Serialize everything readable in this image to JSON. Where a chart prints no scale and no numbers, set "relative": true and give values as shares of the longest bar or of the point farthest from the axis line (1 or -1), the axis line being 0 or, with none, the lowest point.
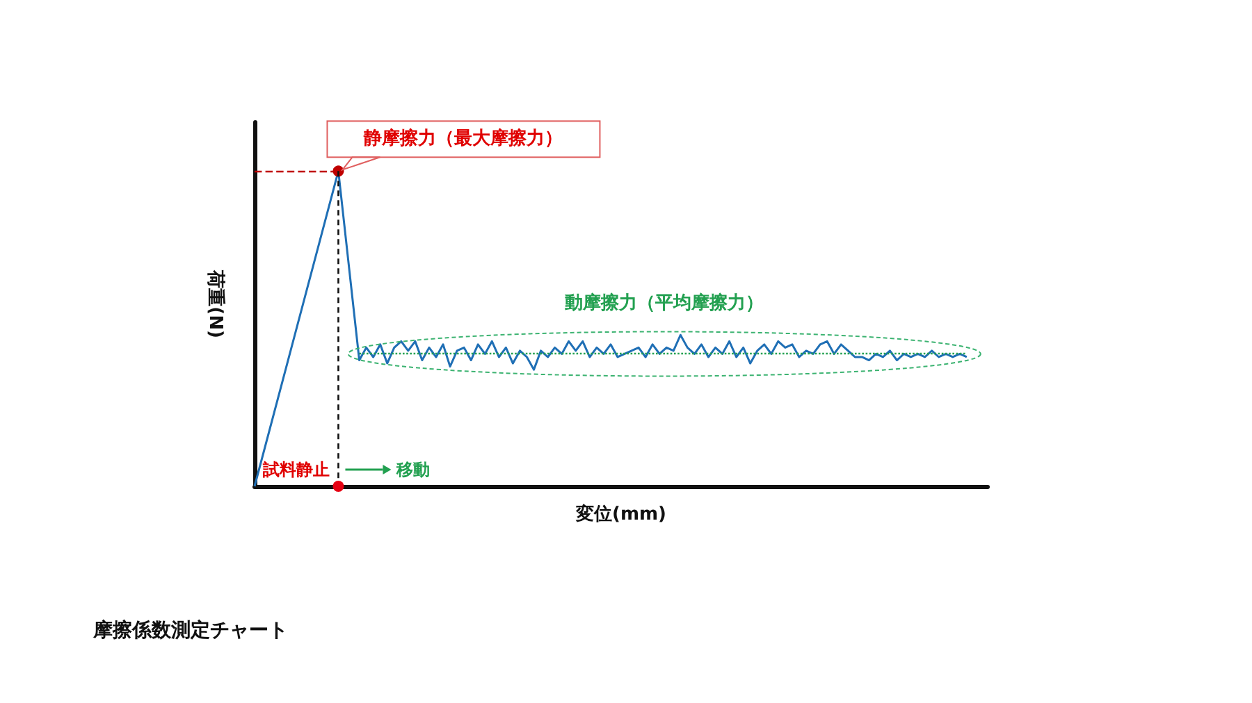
{
  "chart_data": {
    "type": "line",
    "relative": true,
    "title": "摩擦係数測定チャート",
    "xlabel": "変位(mm)",
    "ylabel": "荷重(N)",
    "categories": [
      null,
      null,
      null,
      null,
      null,
      null,
      null,
      null,
      null,
      null,
      null,
      null,
      null,
      null,
      null,
      null,
      null,
      null,
      null,
      null,
      null,
      null,
      null,
      null,
      null,
      null,
      null,
      null,
      null,
      null,
      null,
      null,
      null,
      null,
      null,
      null,
      null,
      null,
      null,
      null,
      null,
      null,
      null,
      null,
      null,
      null,
      null,
      null,
      null,
      null,
      null,
      null,
      null,
      null,
      null,
      null,
      null,
      null,
      null,
      null,
      null,
      null,
      null,
      null,
      null,
      null,
      null,
      null,
      null,
      null,
      null,
      null,
      null,
      null,
      null,
      null,
      null,
      null,
      null,
      null,
      null,
      null,
      null,
      null,
      null,
      null,
      null,
      null,
      null,
      null,
      null,
      null,
      null,
      null,
      null,
      null,
      null,
      null,
      null,
      null,
      null,
      null,
      null,
      null,
      null,
      null
    ],
    "series": [
      {
        "color": "#1f6fb5",
        "values": [
          0,
          null,
          null,
          null,
          null,
          null,
          null,
          null,
          null,
          null,
          null,
          null,
          1,
          null,
          null,
          0.4,
          0.44,
          0.41,
          0.45,
          0.39,
          0.44,
          0.46,
          0.43,
          0.46,
          0.4,
          0.44,
          0.41,
          0.45,
          0.38,
          0.43,
          0.44,
          0.4,
          0.45,
          0.42,
          0.46,
          0.41,
          0.44,
          0.39,
          0.43,
          0.41,
          0.37,
          0.43,
          0.41,
          0.44,
          0.42,
          0.46,
          0.43,
          0.46,
          0.41,
          0.44,
          0.42,
          0.45,
          0.41,
          0.42,
          0.43,
          0.44,
          0.41,
          0.45,
          0.42,
          0.44,
          0.43,
          0.48,
          0.44,
          0.42,
          0.45,
          0.41,
          0.44,
          0.42,
          0.46,
          0.41,
          0.44,
          0.39,
          0.43,
          0.45,
          0.42,
          0.46,
          0.44,
          0.45,
          0.41,
          0.43,
          0.42,
          0.45,
          0.46,
          0.42,
          0.45,
          0.43,
          0.41,
          0.41,
          0.4,
          0.42,
          0.41,
          0.43,
          0.4,
          0.42,
          0.41,
          0.42,
          0.41,
          0.43,
          0.41,
          0.42,
          0.41,
          0.42,
          0.41,
          null,
          null,
          null
        ]
      }
    ],
    "ref_lines": [
      {
        "axis": "y",
        "value": 1,
        "color": "#c00000",
        "line_style": "dashed"
      },
      {
        "axis": "y",
        "value": 0.42,
        "color": "#22a050",
        "line_style": "dotted"
      }
    ],
    "annotations": [
      "静摩擦力（最大摩擦力）",
      "動摩擦力（平均摩擦力）",
      "試料静止",
      "移動"
    ],
    "grid": false
  }
}
